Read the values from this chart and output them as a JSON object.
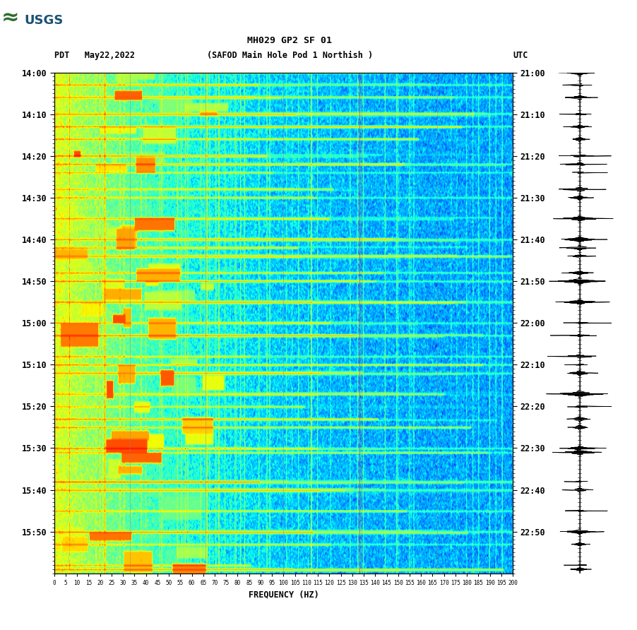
{
  "title_line1": "MH029 GP2 SF 01",
  "title_line2": "(SAFOD Main Hole Pod 1 Northish )",
  "left_label": "PDT   May22,2022",
  "right_label": "UTC",
  "xlabel": "FREQUENCY (HZ)",
  "freq_min": 0,
  "freq_max": 200,
  "freq_ticks": [
    0,
    5,
    10,
    15,
    20,
    25,
    30,
    35,
    40,
    45,
    50,
    55,
    60,
    65,
    70,
    75,
    80,
    85,
    90,
    95,
    100,
    105,
    110,
    115,
    120,
    125,
    130,
    135,
    140,
    145,
    150,
    155,
    160,
    165,
    170,
    175,
    180,
    185,
    190,
    195,
    200
  ],
  "time_labels_left": [
    "14:00",
    "14:10",
    "14:20",
    "14:30",
    "14:40",
    "14:50",
    "15:00",
    "15:10",
    "15:20",
    "15:30",
    "15:40",
    "15:50"
  ],
  "time_labels_right": [
    "21:00",
    "21:10",
    "21:20",
    "21:30",
    "21:40",
    "21:50",
    "22:00",
    "22:10",
    "22:20",
    "22:30",
    "22:40",
    "22:50"
  ],
  "n_time": 600,
  "n_freq": 800,
  "background_color": "#ffffff",
  "colormap": "jet",
  "figure_width": 9.02,
  "figure_height": 8.92,
  "dpi": 100
}
